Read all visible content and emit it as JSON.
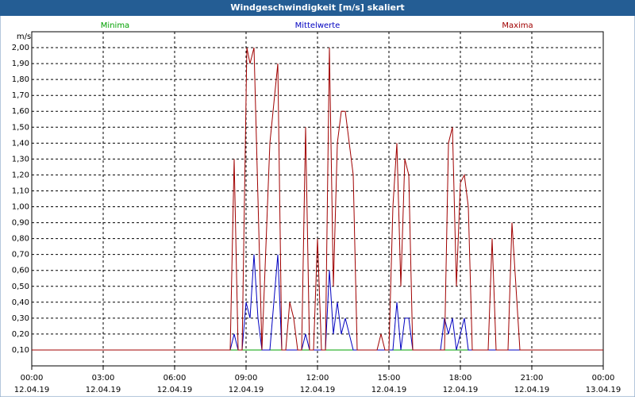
{
  "chart_data": {
    "type": "line",
    "title": "Windgeschwindigkeit [m/s] skaliert",
    "y_label": "m/s",
    "xlim": [
      0,
      1440
    ],
    "ylim": [
      0,
      2.1
    ],
    "grid": true,
    "xticks": [
      {
        "value": 0,
        "label": "00:00"
      },
      {
        "value": 180,
        "label": "03:00"
      },
      {
        "value": 360,
        "label": "06:00"
      },
      {
        "value": 540,
        "label": "09:00"
      },
      {
        "value": 720,
        "label": "12:00"
      },
      {
        "value": 900,
        "label": "15:00"
      },
      {
        "value": 1080,
        "label": "18:00"
      },
      {
        "value": 1260,
        "label": "21:00"
      },
      {
        "value": 1440,
        "label": "00:00"
      }
    ],
    "xtick_dates": [
      "12.04.19",
      "12.04.19",
      "12.04.19",
      "12.04.19",
      "12.04.19",
      "12.04.19",
      "12.04.19",
      "12.04.19",
      "13.04.19"
    ],
    "yticks": [
      {
        "value": 0.1,
        "label": "0,10"
      },
      {
        "value": 0.2,
        "label": "0,20"
      },
      {
        "value": 0.3,
        "label": "0,30"
      },
      {
        "value": 0.4,
        "label": "0,40"
      },
      {
        "value": 0.5,
        "label": "0,50"
      },
      {
        "value": 0.6,
        "label": "0,60"
      },
      {
        "value": 0.7,
        "label": "0,70"
      },
      {
        "value": 0.8,
        "label": "0,80"
      },
      {
        "value": 0.9,
        "label": "0,90"
      },
      {
        "value": 1.0,
        "label": "1,00"
      },
      {
        "value": 1.1,
        "label": "1,10"
      },
      {
        "value": 1.2,
        "label": "1,20"
      },
      {
        "value": 1.3,
        "label": "1,30"
      },
      {
        "value": 1.4,
        "label": "1,40"
      },
      {
        "value": 1.5,
        "label": "1,50"
      },
      {
        "value": 1.6,
        "label": "1,60"
      },
      {
        "value": 1.7,
        "label": "1,70"
      },
      {
        "value": 1.8,
        "label": "1,80"
      },
      {
        "value": 1.9,
        "label": "1,90"
      },
      {
        "value": 2.0,
        "label": "2,00"
      }
    ],
    "series": [
      {
        "name": "Minima",
        "color": "#00a000",
        "x": [
          0,
          1440
        ],
        "values": [
          0.1,
          0.1
        ]
      },
      {
        "name": "Mittelwerte",
        "color": "#0000c0",
        "x": [
          0,
          500,
          510,
          520,
          530,
          540,
          550,
          560,
          570,
          580,
          600,
          620,
          630,
          680,
          690,
          700,
          740,
          750,
          760,
          770,
          780,
          790,
          800,
          810,
          910,
          920,
          930,
          940,
          950,
          960,
          1030,
          1040,
          1050,
          1060,
          1070,
          1080,
          1090,
          1100,
          1440
        ],
        "values": [
          0.1,
          0.1,
          0.2,
          0.1,
          0.1,
          0.4,
          0.3,
          0.7,
          0.3,
          0.1,
          0.1,
          0.7,
          0.1,
          0.1,
          0.2,
          0.1,
          0.1,
          0.6,
          0.2,
          0.4,
          0.2,
          0.3,
          0.2,
          0.1,
          0.1,
          0.4,
          0.1,
          0.3,
          0.3,
          0.1,
          0.1,
          0.3,
          0.2,
          0.3,
          0.1,
          0.2,
          0.3,
          0.1,
          0.1
        ]
      },
      {
        "name": "Maxima",
        "color": "#a00000",
        "x": [
          0,
          500,
          510,
          520,
          530,
          542,
          550,
          560,
          580,
          600,
          620,
          630,
          640,
          650,
          660,
          670,
          680,
          690,
          700,
          710,
          720,
          730,
          740,
          750,
          760,
          770,
          780,
          790,
          810,
          820,
          870,
          880,
          890,
          900,
          910,
          920,
          930,
          940,
          950,
          960,
          1040,
          1050,
          1060,
          1070,
          1080,
          1090,
          1100,
          1110,
          1150,
          1160,
          1170,
          1200,
          1210,
          1230,
          1440
        ],
        "values": [
          0.1,
          0.1,
          1.3,
          0.1,
          0.1,
          2.0,
          1.9,
          2.0,
          0.1,
          1.4,
          1.9,
          0.1,
          0.1,
          0.4,
          0.3,
          0.1,
          0.1,
          1.5,
          0.1,
          0.1,
          0.8,
          0.1,
          0.1,
          2.0,
          0.5,
          1.4,
          1.6,
          1.6,
          1.2,
          0.1,
          0.1,
          0.2,
          0.1,
          0.1,
          1.0,
          1.4,
          0.5,
          1.3,
          1.2,
          0.1,
          0.1,
          1.4,
          1.5,
          0.5,
          1.15,
          1.2,
          1.0,
          0.1,
          0.1,
          0.8,
          0.1,
          0.1,
          0.9,
          0.1,
          0.1
        ]
      }
    ]
  }
}
